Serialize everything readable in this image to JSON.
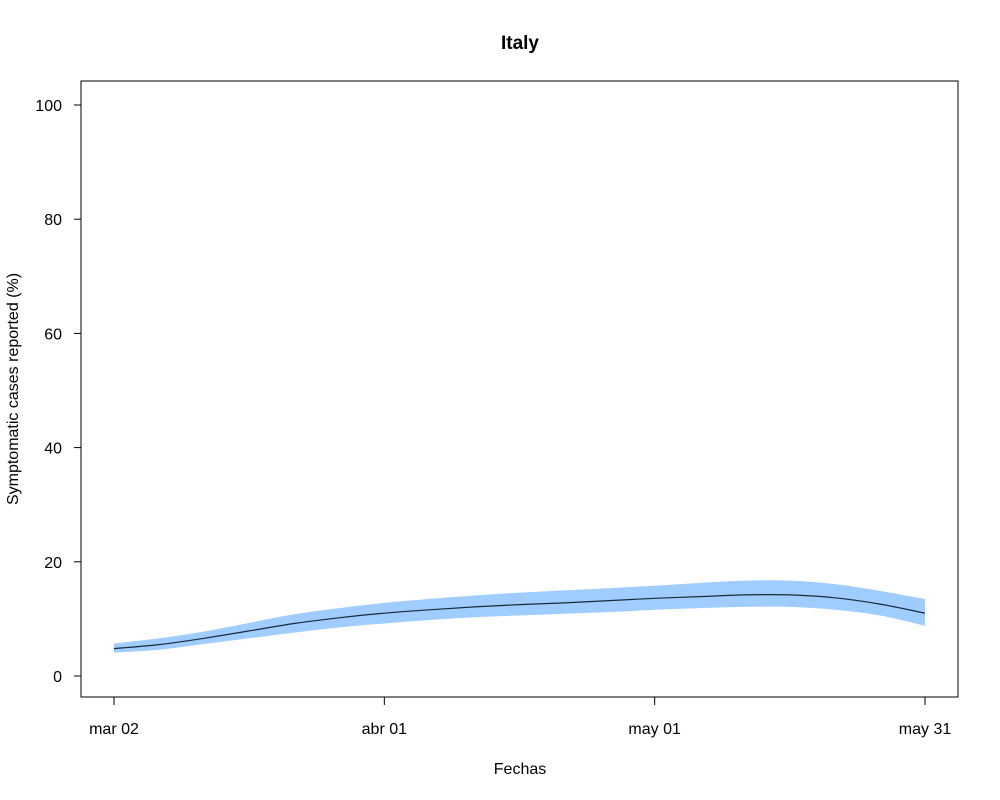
{
  "chart_data": {
    "type": "line",
    "title": "Italy",
    "xlabel": "Fechas",
    "ylabel": "Symptomatic cases reported (%)",
    "ylim": [
      0,
      100
    ],
    "yticks": [
      0,
      20,
      40,
      60,
      80,
      100
    ],
    "xticks": [
      {
        "date": "2020-03-02",
        "label": "mar 02"
      },
      {
        "date": "2020-04-01",
        "label": "abr 01"
      },
      {
        "date": "2020-05-01",
        "label": "may 01"
      },
      {
        "date": "2020-05-31",
        "label": "may 31"
      }
    ],
    "xlim": [
      "2020-03-02",
      "2020-05-31"
    ],
    "band_color": "#9fcdff",
    "line_color": "#1a2a3a",
    "series": [
      {
        "dates": [
          "2020-03-02",
          "2020-03-07",
          "2020-03-12",
          "2020-03-17",
          "2020-03-22",
          "2020-03-27",
          "2020-04-01",
          "2020-04-06",
          "2020-04-11",
          "2020-04-16",
          "2020-04-21",
          "2020-04-26",
          "2020-05-01",
          "2020-05-06",
          "2020-05-11",
          "2020-05-16",
          "2020-05-21",
          "2020-05-26",
          "2020-05-31"
        ],
        "mean": [
          4.8,
          5.5,
          6.6,
          7.9,
          9.2,
          10.2,
          11.0,
          11.6,
          12.1,
          12.5,
          12.8,
          13.2,
          13.6,
          13.9,
          14.2,
          14.2,
          13.7,
          12.6,
          11.0
        ],
        "lower": [
          4.1,
          4.6,
          5.6,
          6.6,
          7.6,
          8.5,
          9.2,
          9.8,
          10.3,
          10.6,
          10.9,
          11.2,
          11.6,
          11.9,
          12.1,
          12.1,
          11.6,
          10.6,
          8.8
        ],
        "upper": [
          5.7,
          6.6,
          7.8,
          9.3,
          10.8,
          11.9,
          12.8,
          13.5,
          14.1,
          14.6,
          15.0,
          15.4,
          15.8,
          16.3,
          16.7,
          16.7,
          16.1,
          14.9,
          13.5
        ]
      }
    ]
  }
}
